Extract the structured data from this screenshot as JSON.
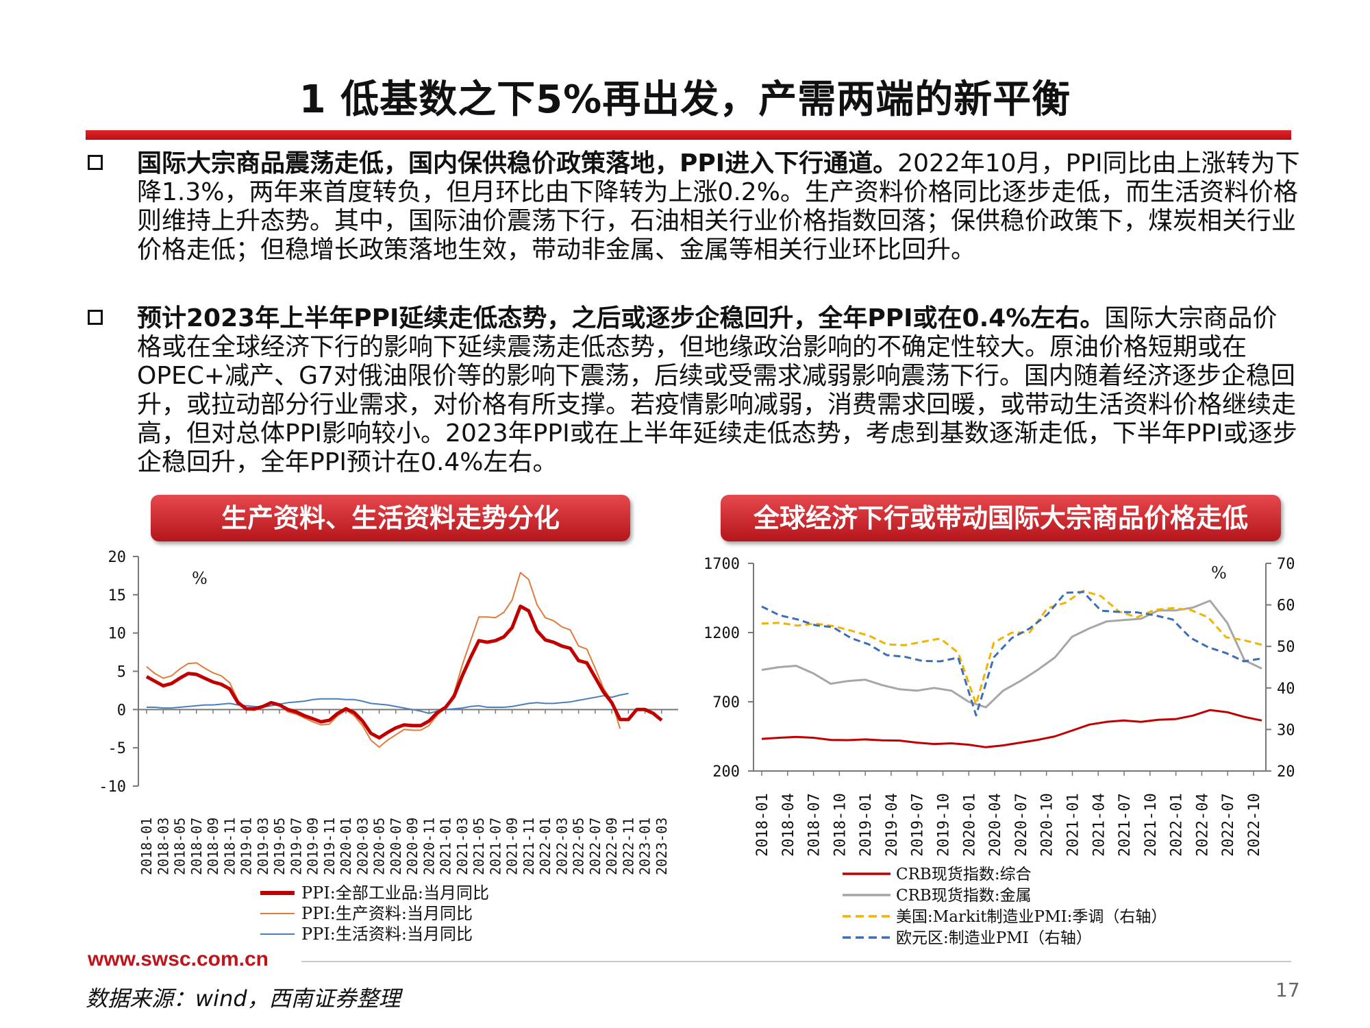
{
  "title": "1 低基数之下5%再出发，产需两端的新平衡",
  "bullets": [
    {
      "bold": "国际大宗商品震荡走低，国内保供稳价政策落地，PPI进入下行通道。",
      "text": "2022年10月，PPI同比由上涨转为下降1.3%，两年来首度转负，但月环比由下降转为上涨0.2%。生产资料价格同比逐步走低，而生活资料价格则维持上升态势。其中，国际油价震荡下行，石油相关行业价格指数回落；保供稳价政策下，煤炭相关行业价格走低；但稳增长政策落地生效，带动非金属、金属等相关行业环比回升。"
    },
    {
      "bold": "预计2023年上半年PPI延续走低态势，之后或逐步企稳回升，全年PPI或在0.4%左右。",
      "text": "国际大宗商品价格或在全球经济下行的影响下延续震荡走低态势，但地缘政治影响的不确定性较大。原油价格短期或在OPEC+减产、G7对俄油限价等的影响下震荡，后续或受需求减弱影响震荡下行。国内随着经济逐步企稳回升，或拉动部分行业需求，对价格有所支撑。若疫情影响减弱，消费需求回暖，或带动生活资料价格继续走高，但对总体PPI影响较小。2023年PPI或在上半年延续走低态势，考虑到基数逐渐走低，下半年PPI或逐步企稳回升，全年PPI预计在0.4%左右。"
    }
  ],
  "panels": {
    "left_title": "生产资料、生活资料走势分化",
    "right_title": "全球经济下行或带动国际大宗商品价格走低"
  },
  "chart_data": [
    {
      "type": "line",
      "unit_label": "%",
      "ylim": [
        -10,
        20
      ],
      "yticks": [
        "20",
        "15",
        "10",
        "5",
        "0",
        "-5",
        "-10"
      ],
      "x_tick_labels": [
        "2018-01",
        "2018-03",
        "2018-05",
        "2018-07",
        "2018-09",
        "2018-11",
        "2019-01",
        "2019-03",
        "2019-05",
        "2019-07",
        "2019-09",
        "2019-11",
        "2020-01",
        "2020-03",
        "2020-05",
        "2020-07",
        "2020-09",
        "2020-11",
        "2021-01",
        "2021-03",
        "2021-05",
        "2021-07",
        "2021-09",
        "2021-11",
        "2022-01",
        "2022-03",
        "2022-05",
        "2022-07",
        "2022-09",
        "2022-11",
        "2023-01",
        "2023-03"
      ],
      "x_start": "2018-01",
      "series": [
        {
          "name": "PPI:全部工业品:当月同比",
          "color": "#c00000",
          "width": 5,
          "values": [
            4.3,
            3.7,
            3.1,
            3.4,
            4.1,
            4.7,
            4.6,
            4.1,
            3.6,
            3.3,
            2.7,
            0.9,
            0.1,
            0.1,
            0.4,
            0.9,
            0.6,
            0.0,
            -0.3,
            -0.8,
            -1.2,
            -1.6,
            -1.4,
            -0.5,
            0.1,
            -0.4,
            -1.5,
            -3.1,
            -3.7,
            -3.0,
            -2.4,
            -2.0,
            -2.1,
            -2.1,
            -1.5,
            -0.4,
            0.3,
            1.7,
            4.4,
            6.8,
            9.0,
            8.8,
            9.0,
            9.5,
            10.7,
            13.5,
            12.9,
            10.3,
            9.1,
            8.8,
            8.3,
            8.0,
            6.4,
            6.1,
            4.2,
            2.3,
            0.9,
            -1.3,
            -1.3,
            0.0,
            0.0,
            -0.5,
            -1.4
          ],
          "ongoing": true
        },
        {
          "name": "PPI:生产资料:当月同比",
          "color": "#e07b39",
          "width": 2,
          "values": [
            5.6,
            4.7,
            4.1,
            4.4,
            5.3,
            6.0,
            6.1,
            5.4,
            4.8,
            4.4,
            3.5,
            1.2,
            0.0,
            -0.1,
            0.3,
            0.9,
            0.6,
            -0.3,
            -0.6,
            -1.1,
            -1.6,
            -2.0,
            -1.9,
            -0.8,
            -0.1,
            -0.8,
            -2.1,
            -4.0,
            -4.9,
            -4.0,
            -3.3,
            -2.6,
            -2.7,
            -2.7,
            -2.1,
            -0.7,
            0.3,
            2.1,
            5.8,
            9.0,
            12.1,
            12.1,
            12.0,
            12.7,
            14.3,
            17.9,
            17.0,
            13.7,
            12.0,
            11.6,
            10.8,
            10.4,
            8.3,
            7.9,
            5.4,
            2.8,
            1.1,
            -2.5
          ],
          "ongoing": false
        },
        {
          "name": "PPI:生活资料:当月同比",
          "color": "#4a7ebb",
          "width": 2,
          "values": [
            0.3,
            0.3,
            0.2,
            0.2,
            0.3,
            0.4,
            0.5,
            0.6,
            0.6,
            0.7,
            0.8,
            0.6,
            0.5,
            0.4,
            0.3,
            0.5,
            0.7,
            0.9,
            1.0,
            1.1,
            1.3,
            1.4,
            1.4,
            1.4,
            1.3,
            1.3,
            1.1,
            0.8,
            0.7,
            0.6,
            0.4,
            0.2,
            0.0,
            -0.2,
            -0.5,
            -0.2,
            0.0,
            0.1,
            0.2,
            0.4,
            0.5,
            0.3,
            0.3,
            0.3,
            0.4,
            0.6,
            0.8,
            0.9,
            0.8,
            0.8,
            0.9,
            1.0,
            1.2,
            1.4,
            1.6,
            1.8,
            1.6,
            1.9,
            2.1
          ],
          "ongoing": false
        }
      ]
    },
    {
      "type": "line",
      "unit_label": "%",
      "ylim_left": [
        200,
        1700
      ],
      "ylim_right": [
        20,
        70
      ],
      "yticks_left": [
        "1700",
        "1200",
        "700",
        "200"
      ],
      "yticks_right": [
        "70",
        "60",
        "50",
        "40",
        "30",
        "20"
      ],
      "x_tick_labels": [
        "2018-01",
        "2018-04",
        "2018-07",
        "2018-10",
        "2019-01",
        "2019-04",
        "2019-07",
        "2019-10",
        "2020-01",
        "2020-04",
        "2020-07",
        "2020-10",
        "2021-01",
        "2021-04",
        "2021-07",
        "2021-10",
        "2022-01",
        "2022-04",
        "2022-07",
        "2022-10"
      ],
      "series": [
        {
          "name": "CRB现货指数:综合",
          "axis": "left",
          "color": "#c00000",
          "style": "solid",
          "values": [
            432,
            440,
            446,
            440,
            425,
            423,
            428,
            422,
            420,
            405,
            395,
            400,
            390,
            372,
            385,
            405,
            425,
            450,
            492,
            535,
            555,
            565,
            555,
            570,
            575,
            600,
            640,
            625,
            590,
            565
          ]
        },
        {
          "name": "CRB现货指数:金属",
          "axis": "left",
          "color": "#a6a6a6",
          "style": "solid",
          "values": [
            930,
            950,
            960,
            905,
            830,
            850,
            860,
            820,
            790,
            780,
            800,
            780,
            700,
            660,
            780,
            850,
            930,
            1020,
            1170,
            1230,
            1280,
            1290,
            1300,
            1360,
            1360,
            1380,
            1430,
            1270,
            1000,
            940
          ]
        },
        {
          "name": "美国:Markit制造业PMI:季调（右轴）",
          "axis": "right",
          "color": "#f0b400",
          "style": "dashed",
          "values": [
            55.5,
            55.7,
            55.0,
            55.5,
            54.9,
            53.8,
            52.6,
            50.5,
            50.3,
            51.1,
            51.9,
            48.5,
            36.1,
            50.9,
            53.3,
            53.4,
            59.2,
            60.5,
            63.4,
            62.1,
            58.4,
            57.0,
            58.8,
            59.2,
            58.8,
            57.0,
            52.2,
            51.5,
            50.4
          ]
        },
        {
          "name": "欧元区:制造业PMI（右轴）",
          "axis": "right",
          "color": "#3a6fb8",
          "style": "dashed",
          "values": [
            59.6,
            57.5,
            56.5,
            55.1,
            54.6,
            52.0,
            50.5,
            47.9,
            47.5,
            46.5,
            46.4,
            47.3,
            33.4,
            47.4,
            52.0,
            54.3,
            57.7,
            62.9,
            63.1,
            58.6,
            58.3,
            58.2,
            57.5,
            56.5,
            52.1,
            49.8,
            48.4,
            46.4,
            47.1
          ]
        }
      ]
    }
  ],
  "footer": {
    "url": "www.swsc.com.cn",
    "source": "数据来源：wind，西南证券整理",
    "page": "17"
  }
}
